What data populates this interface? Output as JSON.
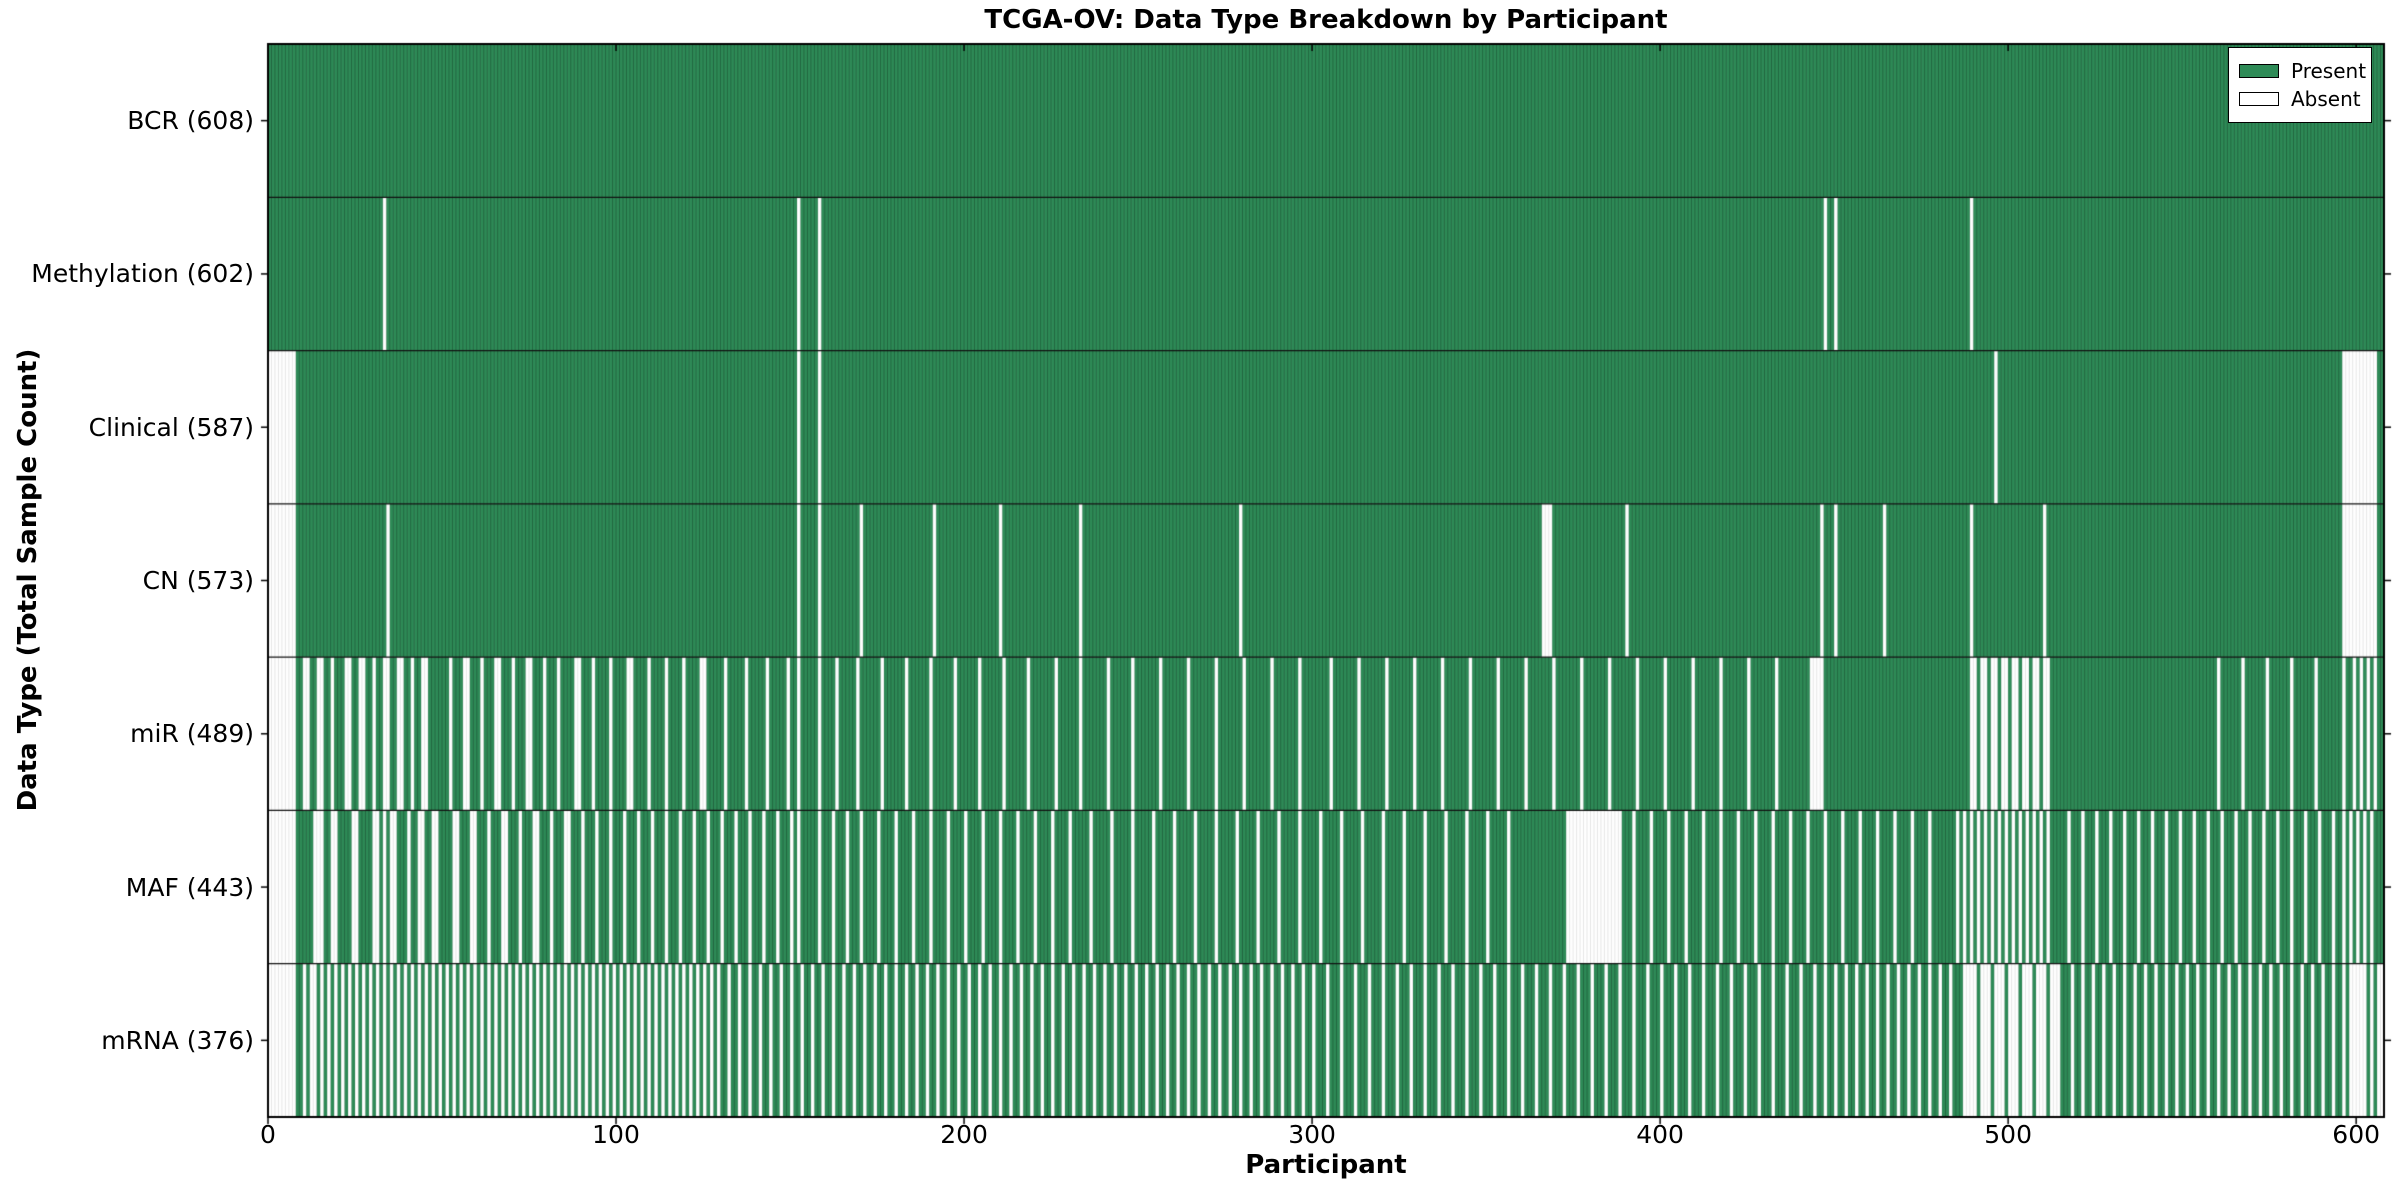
{
  "chart_data": {
    "type": "heatmap",
    "title": "TCGA-OV: Data Type Breakdown by Participant",
    "xlabel": "Participant",
    "ylabel": "Data Type (Total Sample Count)",
    "n_participants": 608,
    "xlim": [
      0,
      608
    ],
    "x_ticks": [
      0,
      100,
      200,
      300,
      400,
      500,
      600
    ],
    "grid": false,
    "legend_position": "upper right",
    "legend": {
      "present": "Present",
      "absent": "Absent"
    },
    "colors": {
      "present": "#2e8b57",
      "absent": "#ffffff",
      "present_edge": "rgba(0,0,0,0.38)",
      "absent_edge": "rgba(0,0,0,0.15)"
    },
    "rows": [
      {
        "label": "BCR",
        "count": 608,
        "absent": []
      },
      {
        "label": "Methylation",
        "count": 602,
        "absent": [
          33,
          152,
          158,
          447,
          450,
          489
        ]
      },
      {
        "label": "Clinical",
        "count": 587,
        "absent": [
          0,
          1,
          2,
          3,
          4,
          5,
          6,
          7,
          152,
          158,
          496,
          596,
          597,
          598,
          599,
          600,
          601,
          602,
          603,
          604,
          605
        ]
      },
      {
        "label": "CN",
        "count": 573,
        "absent": [
          0,
          1,
          2,
          3,
          4,
          5,
          6,
          7,
          34,
          152,
          158,
          170,
          191,
          210,
          233,
          279,
          366,
          367,
          368,
          390,
          446,
          450,
          464,
          489,
          510,
          596,
          597,
          598,
          599,
          600,
          601,
          602,
          603,
          604,
          605
        ]
      },
      {
        "label": "miR",
        "count": 489,
        "absent": [
          0,
          1,
          2,
          3,
          4,
          5,
          6,
          7,
          10,
          11,
          14,
          15,
          18,
          22,
          23,
          26,
          27,
          30,
          33,
          34,
          37,
          38,
          41,
          44,
          45,
          52,
          56,
          57,
          61,
          65,
          66,
          70,
          74,
          75,
          79,
          83,
          88,
          89,
          93,
          98,
          103,
          104,
          109,
          114,
          119,
          124,
          125,
          131,
          137,
          143,
          149,
          152,
          158,
          163,
          169,
          176,
          183,
          190,
          197,
          204,
          211,
          218,
          226,
          233,
          241,
          248,
          256,
          264,
          272,
          280,
          288,
          296,
          305,
          313,
          321,
          329,
          337,
          345,
          353,
          361,
          369,
          377,
          385,
          393,
          401,
          409,
          417,
          425,
          433,
          443,
          444,
          445,
          446,
          489,
          490,
          492,
          493,
          495,
          496,
          498,
          499,
          501,
          502,
          504,
          505,
          507,
          508,
          510,
          511,
          560,
          567,
          574,
          581,
          588,
          596,
          599,
          601,
          603,
          605
        ]
      },
      {
        "label": "MAF",
        "count": 443,
        "absent": [
          0,
          1,
          2,
          3,
          4,
          5,
          6,
          7,
          13,
          14,
          15,
          18,
          19,
          24,
          25,
          30,
          31,
          33,
          35,
          36,
          40,
          43,
          44,
          47,
          48,
          53,
          54,
          58,
          59,
          63,
          67,
          68,
          72,
          76,
          77,
          81,
          85,
          86,
          90,
          94,
          98,
          102,
          106,
          110,
          114,
          118,
          122,
          126,
          130,
          134,
          138,
          142,
          146,
          150,
          152,
          158,
          162,
          166,
          170,
          175,
          180,
          185,
          190,
          195,
          200,
          205,
          210,
          215,
          220,
          225,
          230,
          236,
          242,
          248,
          254,
          260,
          266,
          272,
          278,
          284,
          290,
          296,
          302,
          308,
          314,
          320,
          326,
          332,
          338,
          344,
          350,
          356,
          373,
          374,
          375,
          376,
          377,
          378,
          379,
          380,
          381,
          382,
          383,
          384,
          385,
          386,
          387,
          388,
          392,
          397,
          402,
          407,
          412,
          417,
          422,
          427,
          432,
          437,
          442,
          447,
          452,
          457,
          462,
          467,
          472,
          477,
          485,
          487,
          489,
          491,
          493,
          495,
          497,
          499,
          501,
          503,
          505,
          507,
          509,
          511,
          517,
          521,
          525,
          529,
          533,
          537,
          541,
          545,
          549,
          553,
          557,
          561,
          565,
          569,
          573,
          577,
          581,
          585,
          589,
          593,
          596,
          598,
          600,
          602,
          604
        ]
      },
      {
        "label": "mRNA",
        "count": 376,
        "absent": [
          0,
          1,
          2,
          3,
          4,
          5,
          6,
          7,
          10,
          12,
          13,
          15,
          17,
          19,
          21,
          23,
          25,
          27,
          29,
          31,
          33,
          35,
          37,
          39,
          41,
          43,
          45,
          47,
          49,
          51,
          53,
          55,
          57,
          59,
          61,
          63,
          65,
          67,
          69,
          71,
          73,
          75,
          77,
          79,
          81,
          83,
          85,
          87,
          89,
          91,
          93,
          95,
          97,
          99,
          101,
          103,
          105,
          107,
          109,
          111,
          113,
          115,
          117,
          119,
          121,
          123,
          125,
          127,
          129,
          132,
          135,
          138,
          141,
          144,
          147,
          150,
          153,
          156,
          159,
          162,
          165,
          168,
          171,
          174,
          177,
          180,
          183,
          186,
          189,
          192,
          195,
          198,
          201,
          204,
          207,
          210,
          213,
          216,
          219,
          222,
          225,
          228,
          231,
          234,
          237,
          240,
          243,
          246,
          249,
          252,
          255,
          258,
          261,
          264,
          267,
          270,
          273,
          276,
          279,
          282,
          285,
          288,
          291,
          294,
          297,
          300,
          304,
          308,
          312,
          316,
          320,
          324,
          328,
          332,
          336,
          340,
          344,
          348,
          352,
          356,
          360,
          364,
          368,
          372,
          376,
          380,
          384,
          388,
          392,
          396,
          400,
          404,
          408,
          412,
          416,
          420,
          424,
          428,
          432,
          436,
          440,
          444,
          447,
          450,
          453,
          456,
          459,
          462,
          465,
          468,
          471,
          474,
          477,
          480,
          483,
          487,
          488,
          489,
          490,
          492,
          493,
          494,
          496,
          497,
          498,
          500,
          501,
          502,
          504,
          505,
          506,
          508,
          509,
          510,
          512,
          513,
          514,
          518,
          521,
          524,
          527,
          530,
          533,
          536,
          539,
          542,
          545,
          548,
          551,
          554,
          557,
          560,
          563,
          566,
          569,
          572,
          575,
          578,
          581,
          584,
          587,
          590,
          593,
          596,
          598,
          599,
          600,
          601,
          602,
          604,
          606,
          607
        ]
      }
    ]
  }
}
